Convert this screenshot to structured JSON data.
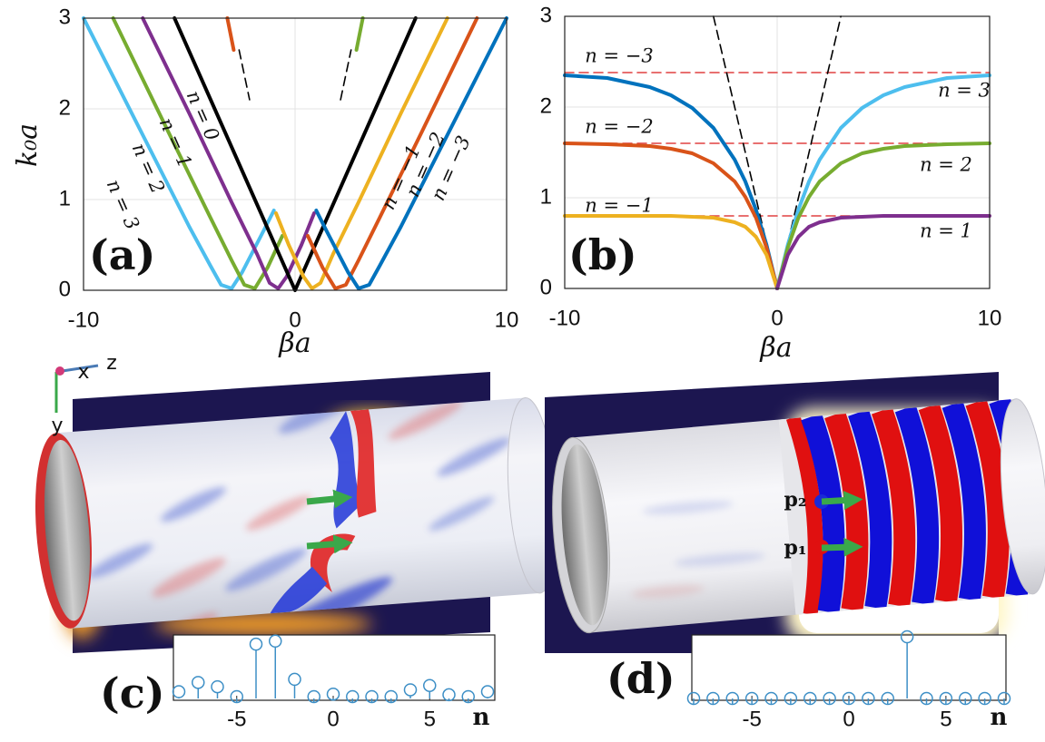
{
  "chart_data": [
    {
      "type": "line",
      "label": "(a)",
      "xlabel": "βa",
      "ylabel": "k₀a",
      "xlim": [
        -10,
        10
      ],
      "ylim": [
        0,
        3
      ],
      "xticks": [
        -10,
        0,
        10
      ],
      "yticks": [
        0,
        1,
        2,
        3
      ],
      "grid": true,
      "series": [
        {
          "color": "#4dbeee",
          "x": [
            -10,
            -7,
            -5,
            -4,
            -3.5,
            -3,
            -2.5,
            -1.5,
            -1
          ],
          "values": [
            3,
            1.62,
            0.7,
            0.27,
            0.06,
            0.02,
            0.2,
            0.65,
            0.88
          ]
        },
        {
          "color": "#77ac30",
          "x": [
            -8.6,
            -6,
            -4,
            -3,
            -2.4,
            -1.9,
            -1.3,
            -0.6
          ],
          "values": [
            3,
            1.75,
            0.8,
            0.33,
            0.06,
            0.02,
            0.25,
            0.6
          ]
        },
        {
          "color": "#7e2f8e",
          "x": [
            -7.2,
            -5,
            -3,
            -1.8,
            -1.2,
            -0.8,
            -0.4,
            0.3,
            0.9
          ],
          "values": [
            3,
            1.95,
            0.97,
            0.4,
            0.08,
            0.02,
            0.15,
            0.5,
            0.85
          ]
        },
        {
          "color": "#000000",
          "x": [
            -5.7,
            0,
            5.7
          ],
          "values": [
            3,
            0,
            3
          ]
        },
        {
          "color": "#edb120",
          "x": [
            -0.9,
            -0.3,
            0.4,
            0.8,
            1.2,
            1.8,
            3,
            5,
            7.2
          ],
          "values": [
            0.85,
            0.5,
            0.15,
            0.02,
            0.08,
            0.4,
            0.97,
            1.95,
            3
          ]
        },
        {
          "color": "#d95319",
          "x": [
            0.6,
            1.3,
            1.9,
            2.4,
            3,
            4,
            6,
            8.6
          ],
          "values": [
            0.6,
            0.25,
            0.02,
            0.06,
            0.33,
            0.8,
            1.75,
            3
          ]
        },
        {
          "color": "#0072bd",
          "x": [
            1,
            1.5,
            2.5,
            3,
            3.5,
            4,
            5,
            7,
            10
          ],
          "values": [
            0.88,
            0.65,
            0.2,
            0.02,
            0.06,
            0.27,
            0.7,
            1.62,
            3
          ]
        },
        {
          "color": "#d95319",
          "x": [
            -3.2,
            -2.9
          ],
          "values": [
            3,
            2.65
          ]
        },
        {
          "color": "#77ac30",
          "x": [
            2.9,
            3.2
          ],
          "values": [
            2.65,
            3
          ]
        },
        {
          "color": "#000000",
          "dash": true,
          "x": [
            -2.65,
            -2.15
          ],
          "values": [
            2.65,
            2.1
          ]
        },
        {
          "color": "#000000",
          "dash": true,
          "x": [
            2.15,
            2.65
          ],
          "values": [
            2.1,
            2.65
          ]
        }
      ],
      "annotations": [
        "n = 0",
        "n = 1",
        "n = 2",
        "n = 3",
        "n = −1",
        "n = −2",
        "n = −3"
      ]
    },
    {
      "type": "line",
      "label": "(b)",
      "xlabel": "βa",
      "xlim": [
        -10,
        10
      ],
      "ylim": [
        0,
        3
      ],
      "xticks": [
        -10,
        0,
        10
      ],
      "yticks": [
        0,
        1,
        2,
        3
      ],
      "grid": true,
      "series": [
        {
          "color": "#e04040",
          "dash": true,
          "x": [
            -10,
            10
          ],
          "values": [
            2.38,
            2.38
          ]
        },
        {
          "color": "#e04040",
          "dash": true,
          "x": [
            -10,
            10
          ],
          "values": [
            1.6,
            1.6
          ]
        },
        {
          "color": "#e04040",
          "dash": true,
          "x": [
            -10,
            10
          ],
          "values": [
            0.8,
            0.8
          ]
        },
        {
          "color": "#000000",
          "dash": true,
          "x": [
            -3,
            -0.5
          ],
          "values": [
            3,
            0.5
          ]
        },
        {
          "color": "#000000",
          "dash": true,
          "x": [
            0.5,
            3
          ],
          "values": [
            0.5,
            3
          ]
        },
        {
          "color": "#0072bd",
          "x": [
            -10,
            -8,
            -6,
            -5,
            -4,
            -3,
            -2,
            -1.5,
            -1,
            -0.5,
            0
          ],
          "values": [
            2.35,
            2.32,
            2.22,
            2.13,
            1.99,
            1.77,
            1.42,
            1.18,
            0.87,
            0.48,
            0
          ]
        },
        {
          "color": "#d95319",
          "x": [
            -10,
            -8,
            -6,
            -5,
            -4,
            -3,
            -2,
            -1.5,
            -1,
            -0.5,
            0
          ],
          "values": [
            1.6,
            1.59,
            1.57,
            1.54,
            1.49,
            1.38,
            1.18,
            1.01,
            0.78,
            0.45,
            0
          ]
        },
        {
          "color": "#edb120",
          "x": [
            -10,
            -8,
            -6,
            -5,
            -4,
            -3,
            -2,
            -1.5,
            -1,
            -0.5,
            0
          ],
          "values": [
            0.8,
            0.8,
            0.8,
            0.8,
            0.79,
            0.78,
            0.73,
            0.68,
            0.57,
            0.37,
            0
          ]
        },
        {
          "color": "#4dbeee",
          "x": [
            0,
            0.5,
            1,
            1.5,
            2,
            3,
            4,
            5,
            6,
            8,
            10
          ],
          "values": [
            0,
            0.48,
            0.87,
            1.18,
            1.42,
            1.77,
            1.99,
            2.13,
            2.22,
            2.32,
            2.35
          ]
        },
        {
          "color": "#77ac30",
          "x": [
            0,
            0.5,
            1,
            1.5,
            2,
            3,
            4,
            5,
            6,
            8,
            10
          ],
          "values": [
            0,
            0.45,
            0.78,
            1.01,
            1.18,
            1.38,
            1.49,
            1.54,
            1.57,
            1.59,
            1.6
          ]
        },
        {
          "color": "#7e2f8e",
          "x": [
            0,
            0.5,
            1,
            1.5,
            2,
            3,
            4,
            5,
            6,
            8,
            10
          ],
          "values": [
            0,
            0.37,
            0.57,
            0.68,
            0.73,
            0.78,
            0.79,
            0.8,
            0.8,
            0.8,
            0.8
          ]
        }
      ],
      "annotations": [
        "n = −3",
        "n = 3",
        "n = −2",
        "n = 2",
        "n = −1",
        "n = 1"
      ]
    },
    {
      "type": "stem",
      "label": "(c)",
      "xlabel": "n",
      "color": "#3d8fc6",
      "x": [
        -8,
        -7,
        -6,
        -5,
        -4,
        -3,
        -2,
        -1,
        0,
        1,
        2,
        3,
        4,
        5,
        6,
        7,
        8
      ],
      "values": [
        0.11,
        0.26,
        0.19,
        0.03,
        0.88,
        0.93,
        0.31,
        0.03,
        0.07,
        0.03,
        0.03,
        0.03,
        0.14,
        0.21,
        0.06,
        0.03,
        0.11
      ],
      "xlim": [
        -8,
        8
      ],
      "ylim": [
        0,
        1
      ],
      "xticks": [
        -5,
        0,
        5
      ],
      "scene_labels": [
        "x",
        "z",
        "y"
      ]
    },
    {
      "type": "stem",
      "label": "(d)",
      "xlabel": "n",
      "color": "#3d8fc6",
      "x": [
        -8,
        -7,
        -6,
        -5,
        -4,
        -3,
        -2,
        -1,
        0,
        1,
        2,
        3,
        4,
        5,
        6,
        7,
        8
      ],
      "values": [
        0,
        0,
        0,
        0,
        0,
        0,
        0,
        0,
        0,
        0,
        0,
        1,
        0,
        0,
        0,
        0,
        0
      ],
      "xlim": [
        -8,
        8
      ],
      "ylim": [
        0,
        1
      ],
      "xticks": [
        -5,
        0,
        5
      ],
      "scene_labels": [
        "p₂",
        "p₁"
      ]
    }
  ]
}
